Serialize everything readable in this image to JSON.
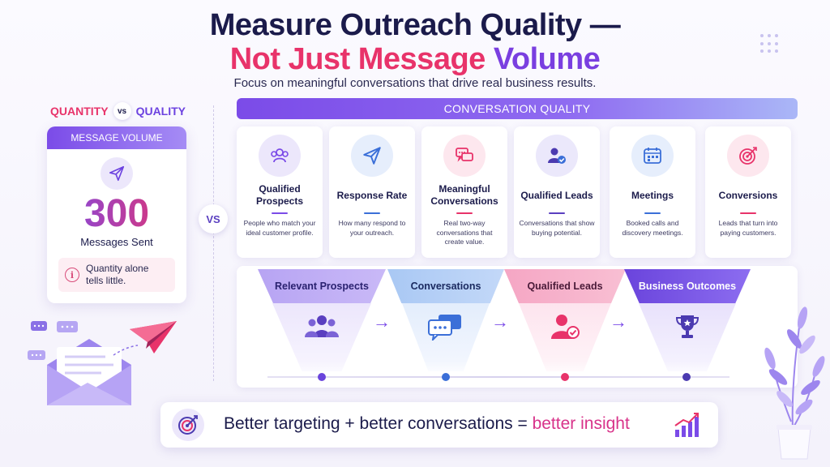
{
  "header": {
    "title_line1": "Measure Outreach Quality —",
    "title_line2_part1": "Not Just Message",
    "title_line2_part2": "Volume",
    "subtitle": "Focus on meaningful conversations that drive real business results."
  },
  "comparison": {
    "left_word": "QUANTITY",
    "vs": "vs",
    "right_word": "QUALITY",
    "center_vs": "VS"
  },
  "volume_card": {
    "header": "MESSAGE VOLUME",
    "icon": "paper-plane-icon",
    "value": "300",
    "label": "Messages Sent",
    "note": "Quantity alone tells little."
  },
  "quality": {
    "header": "CONVERSATION QUALITY",
    "metrics": [
      {
        "title": "Qualified Prospects",
        "desc": "People who match your ideal customer profile.",
        "icon": "group-icon",
        "color": "#7b4be8",
        "bg": "#ece7fb"
      },
      {
        "title": "Response Rate",
        "desc": "How many respond to your outreach.",
        "icon": "paper-plane-icon",
        "color": "#3b6fd8",
        "bg": "#e6eefc"
      },
      {
        "title": "Meaningful Conversations",
        "desc": "Real two-way conversations that create value.",
        "icon": "chat-bubbles-icon",
        "color": "#e8336a",
        "bg": "#fde7ee"
      },
      {
        "title": "Qualified Leads",
        "desc": "Conversations that show buying potential.",
        "icon": "user-check-icon",
        "color": "#5a3fc0",
        "bg": "#ebe8fb"
      },
      {
        "title": "Meetings",
        "desc": "Booked calls and discovery meetings.",
        "icon": "calendar-icon",
        "color": "#3b6fd8",
        "bg": "#e6eefc"
      },
      {
        "title": "Conversions",
        "desc": "Leads that turn into paying customers.",
        "icon": "target-icon",
        "color": "#e8336a",
        "bg": "#fde7ee"
      }
    ]
  },
  "funnel": {
    "stages": [
      {
        "label": "Relevant Prospects",
        "icon": "group-icon"
      },
      {
        "label": "Conversations",
        "icon": "chat-bubbles-icon"
      },
      {
        "label": "Qualified Leads",
        "icon": "user-check-icon"
      },
      {
        "label": "Business Outcomes",
        "icon": "trophy-icon"
      }
    ]
  },
  "insight": {
    "part1": "Better targeting + better conversations = ",
    "part2": "better insight"
  }
}
